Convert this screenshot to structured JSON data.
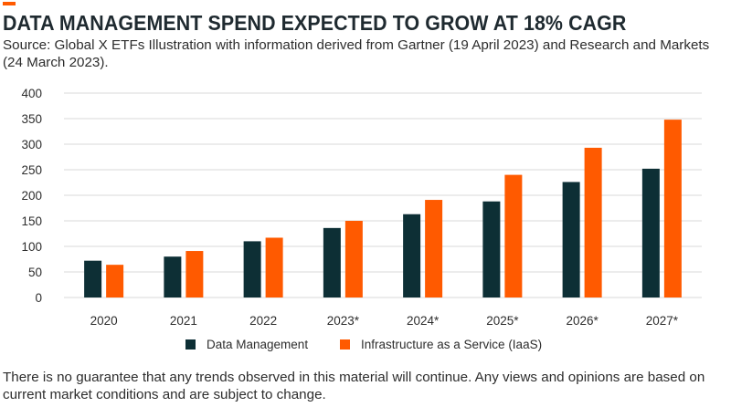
{
  "header": {
    "title": "DATA MANAGEMENT SPEND EXPECTED TO GROW AT 18% CAGR",
    "source": "Source: Global X ETFs Illustration with information derived from Gartner (19 April 2023) and Research and Markets (24 March 2023).",
    "accent_color": "#ff5a00"
  },
  "chart_data": {
    "type": "bar",
    "title": "DATA MANAGEMENT SPEND EXPECTED TO GROW AT 18% CAGR",
    "xlabel": "",
    "ylabel": "",
    "ylim": [
      0,
      400
    ],
    "yticks": [
      0,
      50,
      100,
      150,
      200,
      250,
      300,
      350,
      400
    ],
    "grid": true,
    "legend_position": "bottom",
    "categories": [
      "2020",
      "2021",
      "2022",
      "2023*",
      "2024*",
      "2025*",
      "2026*",
      "2027*"
    ],
    "series": [
      {
        "name": "Data Management",
        "color": "#0d2f35",
        "values": [
          72,
          80,
          110,
          136,
          163,
          188,
          226,
          252
        ]
      },
      {
        "name": "Infrastructure as a Service (IaaS)",
        "color": "#ff5a00",
        "values": [
          64,
          91,
          117,
          150,
          191,
          240,
          293,
          348
        ]
      }
    ]
  },
  "footer": {
    "disclaimer": "There is no guarantee that any trends observed in this material will continue. Any views and opinions are based on current market conditions and are subject to change."
  }
}
